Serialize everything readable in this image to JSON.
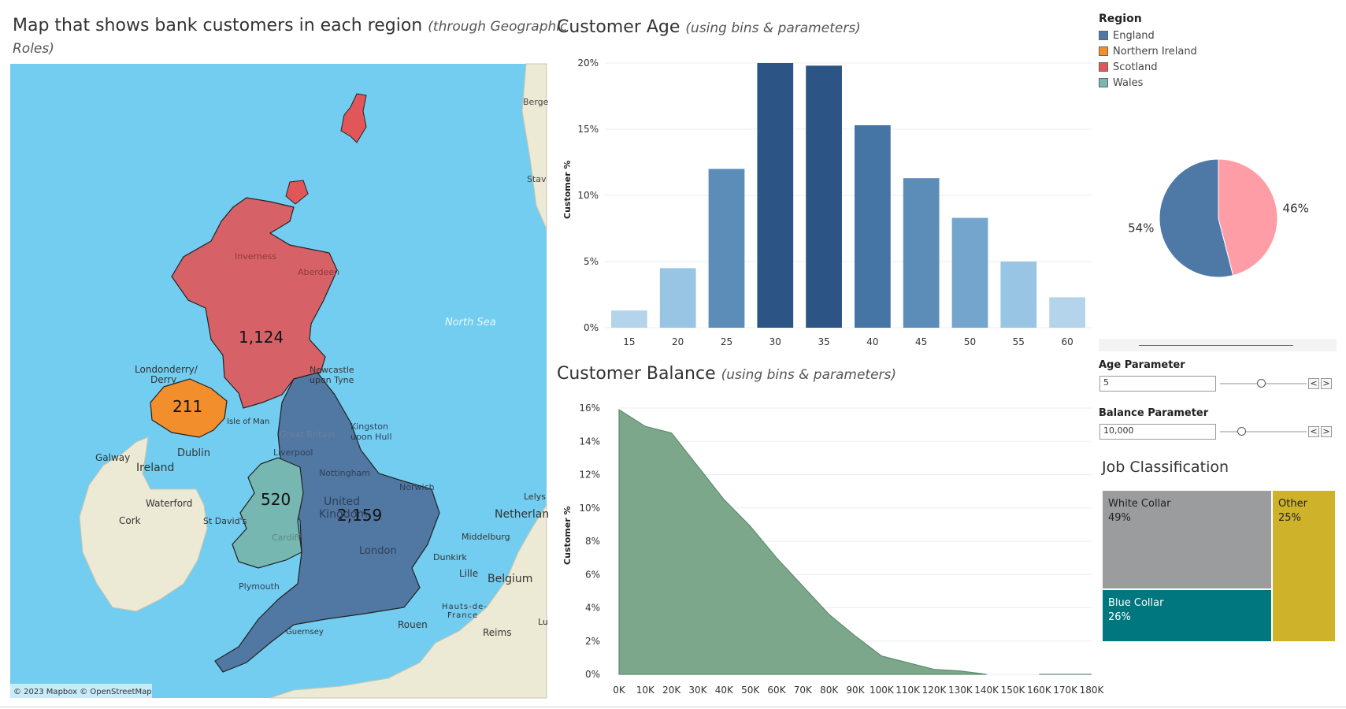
{
  "map": {
    "title": "Map that shows bank customers in each region",
    "title_sub_line1": "(through Geographic",
    "title_sub_line2": "Roles)",
    "attribution": "© 2023 Mapbox © OpenStreetMap",
    "water_color": "#73cdf0",
    "land_color": "#ece9d4",
    "region_values": {
      "scotland": "1,124",
      "northern_ireland": "211",
      "wales": "520",
      "england": "2,159"
    },
    "place_labels": {
      "bergen": "Berge",
      "stav": "Stav",
      "north_sea": "North Sea",
      "inverness": "Inverness",
      "aberdeen": "Aberdeen",
      "londonderry": "Londonderry/",
      "derry": "Derry",
      "newcastle": "Newcastle",
      "upon_tyne": "upon Tyne",
      "isle_of_man": "Isle of Man",
      "kingston": "Kingston",
      "upon_hull": "upon Hull",
      "great_britain": "Great Britain",
      "galway": "Galway",
      "dublin": "Dublin",
      "ireland": "Ireland",
      "liverpool": "Liverpool",
      "nottingham": "Nottingham",
      "norwich": "Norwich",
      "waterford": "Waterford",
      "united": "United",
      "kingdom": "Kingdom",
      "lelys": "Lelys",
      "netherlan": "Netherlan",
      "cork": "Cork",
      "st_davids": "St David's",
      "cardiff": "Cardiff",
      "middelburg": "Middelburg",
      "london": "London",
      "dunkirk": "Dunkirk",
      "lille": "Lille",
      "belgium": "Belgium",
      "plymouth": "Plymouth",
      "hauts": "Hauts-de-",
      "france": "France",
      "rouen": "Rouen",
      "reims": "Reims",
      "guernsey": "Guernsey",
      "lu": "Lu"
    }
  },
  "legend": {
    "title": "Region",
    "items": [
      {
        "label": "England",
        "color": "#4e79a7"
      },
      {
        "label": "Northern Ireland",
        "color": "#f28e2b"
      },
      {
        "label": "Scotland",
        "color": "#e15759"
      },
      {
        "label": "Wales",
        "color": "#76b7b2"
      }
    ]
  },
  "parameters": {
    "age": {
      "label": "Age Parameter",
      "value": "5"
    },
    "balance": {
      "label": "Balance Parameter",
      "value": "10,000"
    },
    "prev_glyph": "<",
    "next_glyph": ">"
  },
  "chart_data": [
    {
      "type": "bar",
      "title": "Customer Age",
      "subtitle": "(using bins & parameters)",
      "ylabel": "Customer %",
      "categories": [
        "15",
        "20",
        "25",
        "30",
        "35",
        "40",
        "45",
        "50",
        "55",
        "60"
      ],
      "values": [
        1.3,
        4.5,
        12.0,
        20.0,
        19.8,
        15.3,
        11.3,
        8.3,
        5.0,
        2.3
      ],
      "ylim": [
        0,
        20
      ],
      "yticks": [
        "0%",
        "5%",
        "10%",
        "15%",
        "20%"
      ],
      "colors": [
        "#b4d4ec",
        "#99c5e4",
        "#5b8db8",
        "#2c5585",
        "#2c5585",
        "#4475a5",
        "#5b8db8",
        "#74a5cc",
        "#99c5e4",
        "#b4d4ec"
      ]
    },
    {
      "type": "area",
      "title": "Customer Balance",
      "subtitle": "(using bins & parameters)",
      "ylabel": "Customer %",
      "x": [
        "0K",
        "10K",
        "20K",
        "30K",
        "40K",
        "50K",
        "60K",
        "70K",
        "80K",
        "90K",
        "100K",
        "110K",
        "120K",
        "130K",
        "140K",
        "150K",
        "160K",
        "170K",
        "180K"
      ],
      "values": [
        15.9,
        14.9,
        14.5,
        12.5,
        10.5,
        8.9,
        7.0,
        5.3,
        3.6,
        2.3,
        1.1,
        0.7,
        0.3,
        0.2,
        0.0,
        null,
        0.0,
        0.0,
        0.0
      ],
      "ylim": [
        0,
        16
      ],
      "yticks": [
        "0%",
        "2%",
        "4%",
        "6%",
        "8%",
        "10%",
        "12%",
        "14%",
        "16%"
      ],
      "color": "#7da78a"
    },
    {
      "type": "pie",
      "slices": [
        {
          "label": "54%",
          "value": 54,
          "color": "#4e79a7"
        },
        {
          "label": "46%",
          "value": 46,
          "color": "#ff9da7"
        }
      ]
    },
    {
      "type": "treemap",
      "title": "Job Classification",
      "cells": [
        {
          "name": "White Collar",
          "pct": "49%",
          "color": "#9a9c9e"
        },
        {
          "name": "Blue Collar",
          "pct": "26%",
          "color": "#00767f"
        },
        {
          "name": "Other",
          "pct": "25%",
          "color": "#cdb22a"
        }
      ]
    }
  ]
}
